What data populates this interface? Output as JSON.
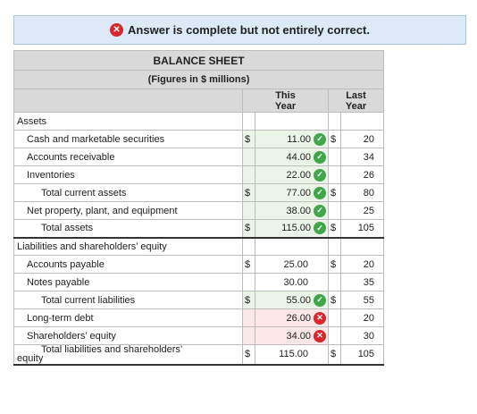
{
  "banner": {
    "text": "Answer is complete but not entirely correct."
  },
  "table": {
    "title": "BALANCE SHEET",
    "subtitle": "(Figures in $ millions)",
    "col_this_line1": "This",
    "col_this_line2": "Year",
    "col_last_line1": "Last",
    "col_last_line2": "Year",
    "currency": "$",
    "rows": {
      "assets": "Assets",
      "cash": {
        "label": "Cash and marketable securities",
        "this": "11.00",
        "last": "20"
      },
      "ar": {
        "label": "Accounts receivable",
        "this": "44.00",
        "last": "34"
      },
      "inv": {
        "label": "Inventories",
        "this": "22.00",
        "last": "26"
      },
      "tca": {
        "label": "Total current assets",
        "this": "77.00",
        "last": "80"
      },
      "ppe": {
        "label": "Net property, plant, and equipment",
        "this": "38.00",
        "last": "25"
      },
      "ta": {
        "label": "Total assets",
        "this": "115.00",
        "last": "105"
      },
      "liab": "Liabilities and shareholders’ equity",
      "ap": {
        "label": "Accounts payable",
        "this": "25.00",
        "last": "20"
      },
      "np": {
        "label": "Notes payable",
        "this": "30.00",
        "last": "35"
      },
      "tcl": {
        "label": "Total current liabilities",
        "this": "55.00",
        "last": "55"
      },
      "ltd": {
        "label": "Long-term debt",
        "this": "26.00",
        "last": "20"
      },
      "se": {
        "label": "Shareholders’ equity",
        "this": "34.00",
        "last": "30"
      },
      "tlse": {
        "label_line1": "Total liabilities and shareholders’",
        "label_line2": "equity",
        "this": "115.00",
        "last": "105"
      }
    }
  },
  "icons": {
    "correct": "check-circle-icon",
    "incorrect": "x-circle-icon"
  },
  "colors": {
    "correct": "#3fa64a",
    "incorrect": "#d8262c",
    "banner_bg": "#dce9f6",
    "header_gray": "#d9d9d9"
  }
}
